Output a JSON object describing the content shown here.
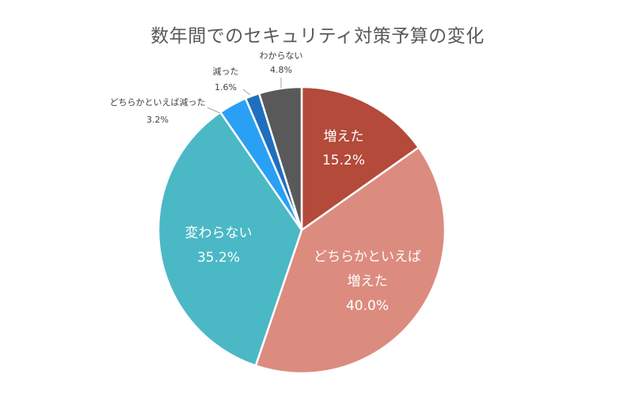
{
  "chart_data": {
    "type": "pie",
    "title": "数年間でのセキュリティ対策予算の変化",
    "categories": [
      "増えた",
      "どちらかといえば増えた",
      "変わらない",
      "どちらかといえば減った",
      "減った",
      "わからない"
    ],
    "values": [
      15.2,
      40.0,
      35.2,
      3.2,
      1.6,
      4.8
    ],
    "value_labels": [
      "15.2%",
      "40.0%",
      "35.2%",
      "3.2%",
      "1.6%",
      "4.8%"
    ],
    "colors": [
      "#b34a3a",
      "#dc8b7f",
      "#4bb8c6",
      "#2aa0f5",
      "#1f6fbd",
      "#595959"
    ],
    "start_angle_deg": 0,
    "direction": "clockwise",
    "legend": "none"
  }
}
